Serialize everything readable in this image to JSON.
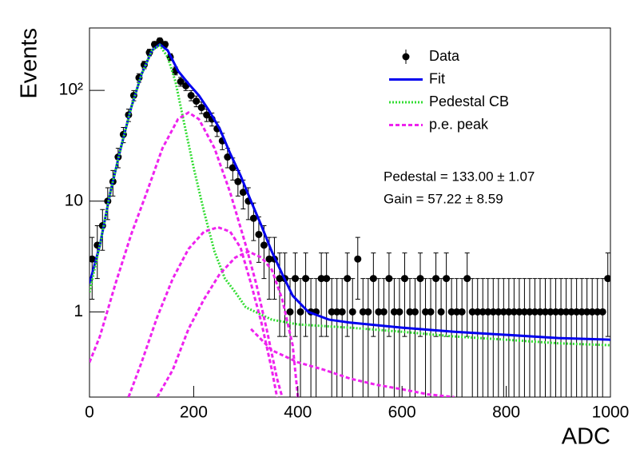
{
  "chart_data": {
    "type": "scatter",
    "xlabel": "ADC",
    "ylabel": "Events",
    "xlim": [
      0,
      1000
    ],
    "xticks": [
      0,
      200,
      400,
      600,
      800,
      1000
    ],
    "ylim": [
      0.17,
      366
    ],
    "yscale": "log",
    "yticks": [
      1,
      10,
      {
        "value": 100,
        "label": "10²"
      }
    ],
    "legend": "upper right",
    "annotations": [
      "Pedestal = 133.00 ± 1.07",
      "Gain = 57.22 ± 8.59"
    ],
    "series": [
      {
        "name": "Data",
        "color": "#000000",
        "kind": "points",
        "x": [
          5,
          15,
          25,
          35,
          45,
          55,
          65,
          75,
          85,
          95,
          105,
          115,
          125,
          135,
          145,
          155,
          165,
          175,
          185,
          195,
          205,
          215,
          225,
          235,
          245,
          255,
          265,
          275,
          285,
          295,
          305,
          315,
          325,
          335,
          345,
          355,
          365,
          375,
          385,
          395,
          405,
          415,
          425,
          435,
          445,
          455,
          465,
          475,
          485,
          495,
          505,
          515,
          525,
          535,
          545,
          555,
          565,
          575,
          585,
          595,
          605,
          615,
          625,
          635,
          645,
          655,
          665,
          675,
          685,
          695,
          705,
          715,
          725,
          735,
          745,
          755,
          765,
          775,
          785,
          795,
          805,
          815,
          825,
          835,
          845,
          855,
          865,
          875,
          885,
          895,
          905,
          915,
          925,
          935,
          945,
          955,
          965,
          975,
          985,
          995
        ],
        "values": [
          3,
          4,
          6,
          10,
          15,
          25,
          40,
          60,
          90,
          130,
          170,
          220,
          260,
          280,
          260,
          200,
          150,
          120,
          110,
          90,
          80,
          70,
          60,
          55,
          45,
          35,
          25,
          20,
          15,
          12,
          10,
          7,
          5,
          4,
          3,
          3,
          2,
          2,
          1,
          2,
          1,
          2,
          1,
          1,
          2,
          2,
          1,
          1,
          1,
          2,
          1,
          3,
          1,
          1,
          2,
          1,
          1,
          2,
          1,
          1,
          2,
          1,
          1,
          2,
          1,
          1,
          2,
          1,
          2,
          1,
          1,
          1,
          2,
          1,
          1,
          1,
          1,
          1,
          1,
          1,
          1,
          1,
          1,
          1,
          1,
          1,
          1,
          1,
          1,
          1,
          1,
          1,
          1,
          1,
          1,
          1,
          1,
          1,
          1,
          2
        ],
        "errors": [
          1.7,
          2,
          2.4,
          3.2,
          3.9,
          5,
          6.3,
          7.7,
          9.5,
          11.4,
          13,
          14.8,
          16.1,
          16.7,
          16.1,
          14.1,
          12.2,
          11,
          10.5,
          9.5,
          8.9,
          8.4,
          7.7,
          7.4,
          6.7,
          5.9,
          5,
          4.5,
          3.9,
          3.5,
          3.2,
          2.6,
          2.2,
          2,
          1.7,
          1.7,
          1.4,
          1.4,
          1,
          1.4,
          1,
          1.4,
          1,
          1,
          1.4,
          1.4,
          1,
          1,
          1,
          1.4,
          1,
          1.7,
          1,
          1,
          1.4,
          1,
          1,
          1.4,
          1,
          1,
          1.4,
          1,
          1,
          1.4,
          1,
          1,
          1.4,
          1,
          1.4,
          1,
          1,
          1,
          1.4,
          1,
          1,
          1,
          1,
          1,
          1,
          1,
          1,
          1,
          1,
          1,
          1,
          1,
          1,
          1,
          1,
          1,
          1,
          1,
          1,
          1,
          1,
          1,
          1,
          1,
          1,
          1.4
        ]
      },
      {
        "name": "Fit",
        "color": "#0000ee",
        "kind": "solid",
        "x": [
          0,
          20,
          40,
          60,
          80,
          100,
          120,
          135,
          150,
          170,
          190,
          210,
          230,
          250,
          270,
          290,
          310,
          330,
          350,
          370,
          390,
          420,
          460,
          500,
          600,
          700,
          800,
          900,
          1000
        ],
        "values": [
          1.8,
          4,
          12,
          30,
          70,
          140,
          230,
          260,
          230,
          150,
          115,
          90,
          65,
          45,
          27,
          17,
          10,
          6,
          3.5,
          2.2,
          1.4,
          1.0,
          0.85,
          0.8,
          0.72,
          0.66,
          0.62,
          0.58,
          0.56
        ]
      },
      {
        "name": "Pedestal CB",
        "color": "#33dd33",
        "kind": "dotted",
        "x": [
          0,
          20,
          40,
          60,
          80,
          100,
          120,
          135,
          150,
          165,
          180,
          200,
          220,
          240,
          260,
          280,
          300,
          350,
          400,
          500,
          600,
          700,
          800,
          900,
          1000
        ],
        "values": [
          1.5,
          4,
          12,
          30,
          70,
          140,
          230,
          255,
          200,
          120,
          55,
          20,
          8,
          3.5,
          2,
          1.5,
          1.1,
          0.85,
          0.77,
          0.72,
          0.66,
          0.6,
          0.56,
          0.52,
          0.5
        ]
      },
      {
        "name": "p.e. peak",
        "color": "#ee22ee",
        "kind": "dashed",
        "curves": [
          {
            "x": [
              0,
              20,
              50,
              80,
              110,
              140,
              170,
              190,
              210,
              240,
              270,
              300,
              320,
              340,
              360,
              370
            ],
            "values": [
              0.35,
              0.6,
              1.8,
              5,
              12,
              30,
              55,
              63,
              55,
              30,
              12,
              4,
              1.8,
              0.7,
              0.25,
              0.17
            ]
          },
          {
            "x": [
              75,
              100,
              130,
              160,
              190,
              220,
              247,
              270,
              290,
              310,
              330,
              350,
              360
            ],
            "values": [
              0.17,
              0.35,
              0.9,
              2,
              3.7,
              5.3,
              5.8,
              5.3,
              3.8,
              1.8,
              0.8,
              0.3,
              0.17
            ]
          },
          {
            "x": [
              130,
              160,
              190,
              220,
              250,
              280,
              305,
              330,
              350,
              370,
              390,
              400
            ],
            "values": [
              0.17,
              0.3,
              0.7,
              1.3,
              2.2,
              3.1,
              3.5,
              3.1,
              2.4,
              1.3,
              0.5,
              0.17
            ]
          },
          {
            "x": [
              310,
              350,
              400,
              450,
              500,
              550,
              600,
              650,
              700
            ],
            "values": [
              0.7,
              0.45,
              0.35,
              0.3,
              0.25,
              0.22,
              0.2,
              0.18,
              0.17
            ]
          }
        ]
      }
    ]
  }
}
